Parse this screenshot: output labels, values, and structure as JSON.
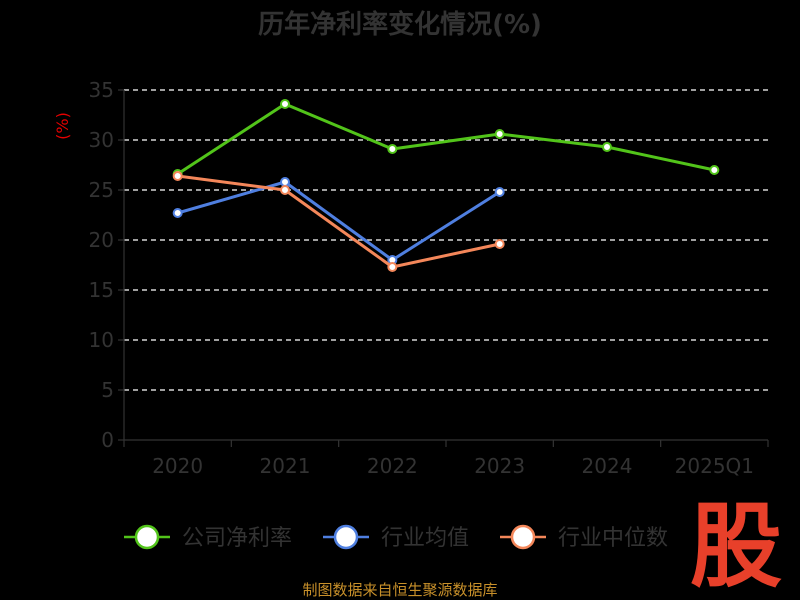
{
  "chart_data": {
    "type": "line",
    "title": "历年净利率变化情况(%)",
    "ylabel": "(%)",
    "xlabel": "",
    "categories": [
      "2020",
      "2021",
      "2022",
      "2023",
      "2024",
      "2025Q1"
    ],
    "y_ticks": [
      "0",
      "5",
      "10",
      "15",
      "20",
      "25",
      "30",
      "35"
    ],
    "ylim": [
      0,
      35
    ],
    "grid": true,
    "legend_position": "bottom",
    "series": [
      {
        "name": "公司净利率",
        "color": "#52c41a",
        "values": [
          26.6,
          33.6,
          29.1,
          30.6,
          29.3,
          27.0
        ]
      },
      {
        "name": "行业均值",
        "color": "#4f7fe0",
        "values": [
          22.7,
          25.8,
          18.0,
          24.8,
          null,
          null
        ]
      },
      {
        "name": "行业中位数",
        "color": "#f4875a",
        "values": [
          26.4,
          25.0,
          17.3,
          19.6,
          null,
          null
        ]
      }
    ]
  },
  "footer": {
    "source": "制图数据来自恒生聚源数据库",
    "logo": "股"
  }
}
